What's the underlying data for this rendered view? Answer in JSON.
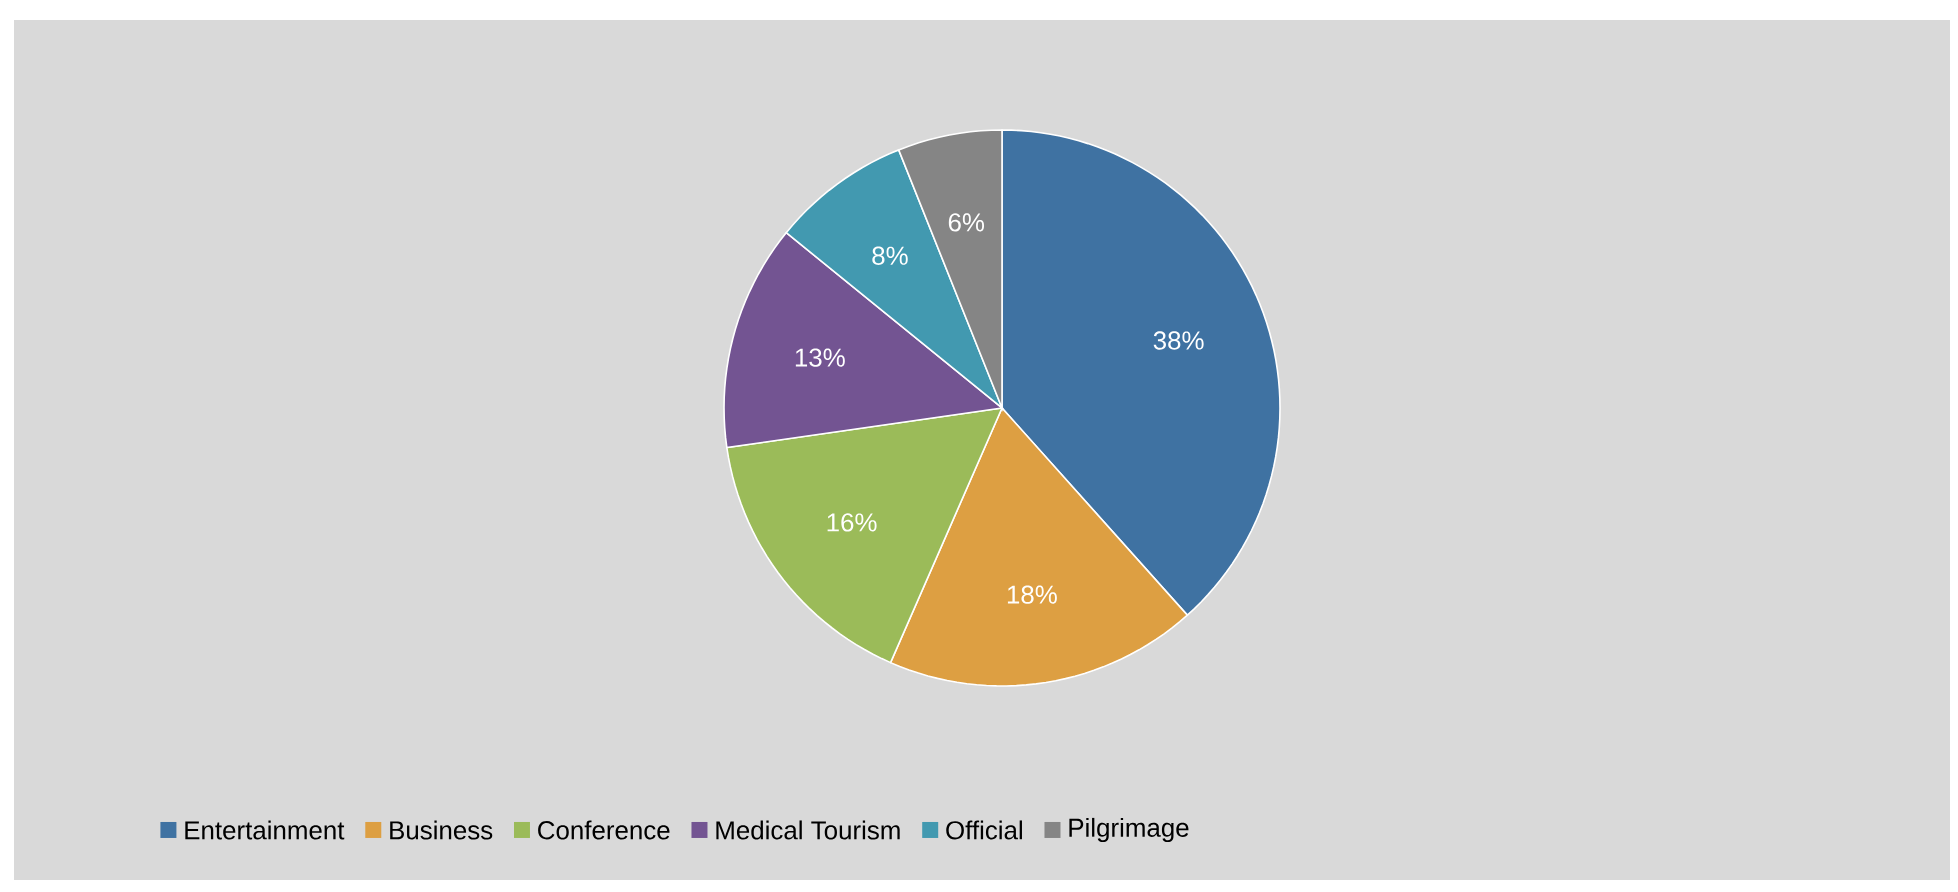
{
  "chart_data": {
    "type": "pie",
    "categories": [
      "Entertainment",
      "Business",
      "Conference",
      "Medical Tourism",
      "Official",
      "Pilgrimage"
    ],
    "values": [
      38,
      18,
      16,
      13,
      8,
      6
    ],
    "colors": [
      "#3f72a2",
      "#dd9f42",
      "#9bbb59",
      "#735492",
      "#4299b0",
      "#858585"
    ],
    "value_labels": [
      "38%",
      "18%",
      "16%",
      "13%",
      "8%",
      "6%"
    ],
    "legend": "bottom"
  }
}
